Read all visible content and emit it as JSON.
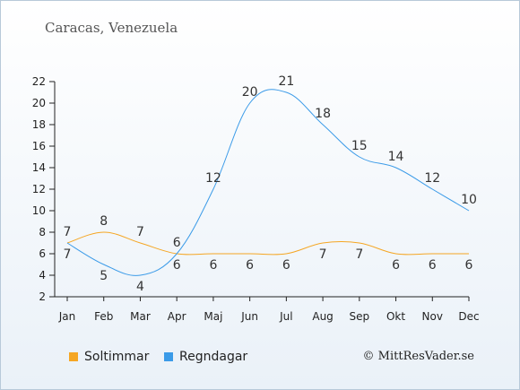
{
  "title": "Caracas, Venezuela",
  "credit": "© MittResVader.se",
  "chart_data": {
    "type": "line",
    "categories": [
      "Jan",
      "Feb",
      "Mar",
      "Apr",
      "Maj",
      "Jun",
      "Jul",
      "Aug",
      "Sep",
      "Okt",
      "Nov",
      "Dec"
    ],
    "ylim": [
      2,
      22
    ],
    "yticks": [
      2,
      4,
      6,
      8,
      10,
      12,
      14,
      16,
      18,
      20,
      22
    ],
    "grid": false,
    "legend_position": "bottom-left",
    "series": [
      {
        "name": "Soltimmar",
        "color": "#f5a623",
        "values": [
          7,
          8,
          7,
          6,
          6,
          6,
          6,
          7,
          7,
          6,
          6,
          6
        ]
      },
      {
        "name": "Regndagar",
        "color": "#3b9be8",
        "values": [
          7,
          5,
          4,
          6,
          12,
          20,
          21,
          18,
          15,
          14,
          12,
          10
        ]
      }
    ]
  }
}
